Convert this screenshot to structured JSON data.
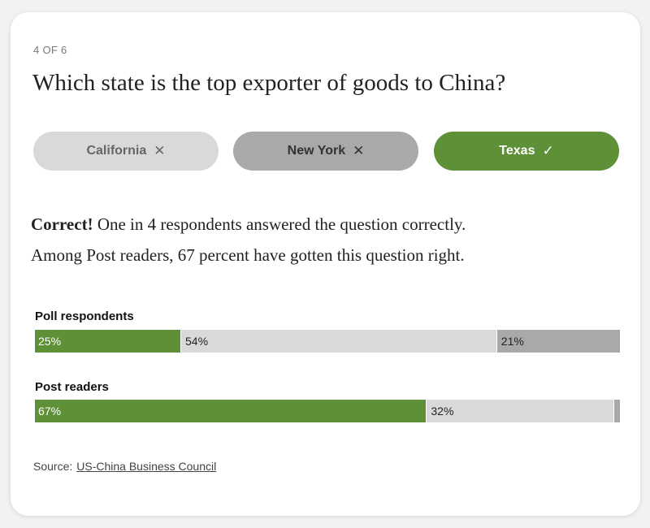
{
  "quiz": {
    "counter": "4 OF 6",
    "question": "Which state is the top exporter of goods to China?",
    "answers": [
      {
        "label": "California",
        "mark": "✕",
        "state": "wrong"
      },
      {
        "label": "New York",
        "mark": "✕",
        "state": "wrong"
      },
      {
        "label": "Texas",
        "mark": "✓",
        "state": "correct"
      }
    ]
  },
  "result": {
    "verdict": "Correct!",
    "text1": " One in 4 respondents answered the question correctly.",
    "text2": "Among Post readers, 67 percent have gotten this question right."
  },
  "bars": [
    {
      "label": "Poll respondents",
      "segments": [
        {
          "value": 25,
          "text": "25%",
          "kind": "correct"
        },
        {
          "value": 54,
          "text": "54%",
          "kind": "other"
        },
        {
          "value": 21,
          "text": "21%",
          "kind": "wrong"
        }
      ]
    },
    {
      "label": "Post readers",
      "segments": [
        {
          "value": 67,
          "text": "67%",
          "kind": "correct"
        },
        {
          "value": 32,
          "text": "32%",
          "kind": "other"
        },
        {
          "value": 1,
          "text": "",
          "kind": "wrong"
        }
      ]
    }
  ],
  "source": {
    "prefix": "Source:",
    "link": "US-China Business Council"
  },
  "colors": {
    "correct": "#5e9038",
    "neutral": "#d9d9d9",
    "wrong": "#a9a9a9"
  }
}
